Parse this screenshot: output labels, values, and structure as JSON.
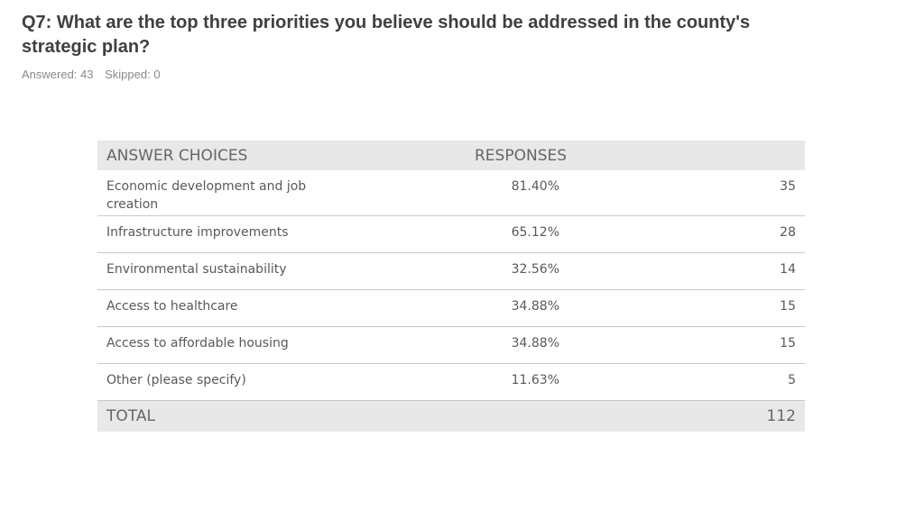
{
  "question": "Q7: What are the top three priorities you believe should be addressed in the county's strategic plan?",
  "answered": "Answered: 43",
  "skipped": "Skipped: 0",
  "table": {
    "headers": {
      "choices": "ANSWER CHOICES",
      "responses": "RESPONSES"
    },
    "rows": [
      {
        "choice": "Economic development and job creation",
        "percent": "81.40%",
        "count": "35"
      },
      {
        "choice": "Infrastructure improvements",
        "percent": "65.12%",
        "count": "28"
      },
      {
        "choice": "Environmental sustainability",
        "percent": "32.56%",
        "count": "14"
      },
      {
        "choice": "Access to healthcare",
        "percent": "34.88%",
        "count": "15"
      },
      {
        "choice": "Access to affordable housing",
        "percent": "34.88%",
        "count": "15"
      },
      {
        "choice": "Other (please specify)",
        "percent": "11.63%",
        "count": "5"
      }
    ],
    "total": {
      "label": "TOTAL",
      "count": "112"
    }
  }
}
